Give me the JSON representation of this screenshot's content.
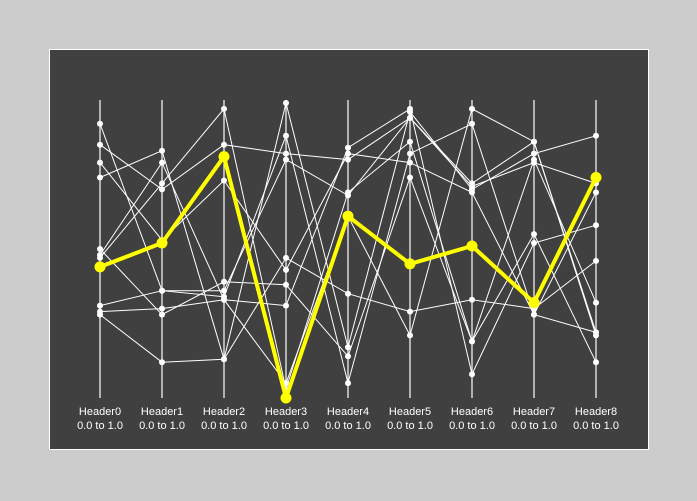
{
  "chart_data": {
    "type": "parallel_coordinates",
    "axes": [
      {
        "name": "Header0",
        "range_label": "0.0 to 1.0",
        "min": 0.0,
        "max": 1.0
      },
      {
        "name": "Header1",
        "range_label": "0.0 to 1.0",
        "min": 0.0,
        "max": 1.0
      },
      {
        "name": "Header2",
        "range_label": "0.0 to 1.0",
        "min": 0.0,
        "max": 1.0
      },
      {
        "name": "Header3",
        "range_label": "0.0 to 1.0",
        "min": 0.0,
        "max": 1.0
      },
      {
        "name": "Header4",
        "range_label": "0.0 to 1.0",
        "min": 0.0,
        "max": 1.0
      },
      {
        "name": "Header5",
        "range_label": "0.0 to 1.0",
        "min": 0.0,
        "max": 1.0
      },
      {
        "name": "Header6",
        "range_label": "0.0 to 1.0",
        "min": 0.0,
        "max": 1.0
      },
      {
        "name": "Header7",
        "range_label": "0.0 to 1.0",
        "min": 0.0,
        "max": 1.0
      },
      {
        "name": "Header8",
        "range_label": "0.0 to 1.0",
        "min": 0.0,
        "max": 1.0
      }
    ],
    "records": [
      [
        0.74,
        0.83,
        0.13,
        0.99,
        0.17,
        0.96,
        0.7,
        0.82,
        0.88
      ],
      [
        0.85,
        0.7,
        0.85,
        0.82,
        0.8,
        0.94,
        0.71,
        0.79,
        0.72
      ],
      [
        0.47,
        0.72,
        0.97,
        0.03,
        0.69,
        0.86,
        0.19,
        0.8,
        0.32
      ],
      [
        0.92,
        0.36,
        0.34,
        0.88,
        0.05,
        0.82,
        0.92,
        0.28,
        0.22
      ],
      [
        0.29,
        0.3,
        0.33,
        0.31,
        0.84,
        0.97,
        0.08,
        0.52,
        0.58
      ],
      [
        0.79,
        0.53,
        0.73,
        0.43,
        0.82,
        0.79,
        0.69,
        0.28,
        0.69
      ],
      [
        0.31,
        0.36,
        0.36,
        0.8,
        0.68,
        0.94,
        0.72,
        0.86,
        0.21
      ],
      [
        0.48,
        0.79,
        0.33,
        0.05,
        0.61,
        0.21,
        0.97,
        0.86,
        0.22
      ],
      [
        0.28,
        0.12,
        0.13,
        0.47,
        0.35,
        0.29,
        0.33,
        0.3,
        0.46
      ],
      [
        0.5,
        0.28,
        0.39,
        0.38,
        0.14,
        0.74,
        0.19,
        0.55,
        0.12
      ]
    ],
    "highlighted": [
      0.44,
      0.52,
      0.81,
      0.0,
      0.61,
      0.45,
      0.51,
      0.32,
      0.74
    ],
    "colors": {
      "panel_background": "#404040",
      "page_background": "#cccccc",
      "lines": "#ffffff",
      "highlight": "#ffff00"
    },
    "grid": false,
    "legend": "none"
  }
}
